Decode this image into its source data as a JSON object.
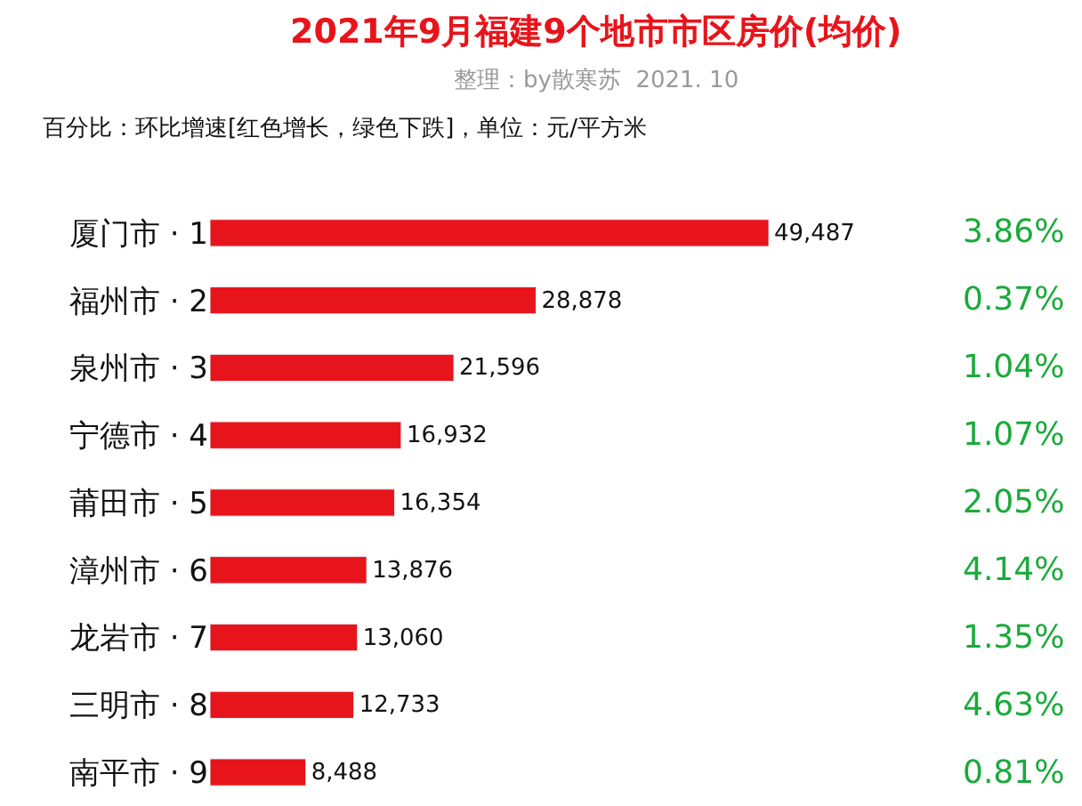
{
  "chart_data": {
    "type": "bar",
    "orientation": "horizontal",
    "title": "2021年9月福建9个地市市区房价(均价)",
    "subtitle": "整理：by散寒苏  2021. 10",
    "categories": [
      "厦门市 · 1",
      "福州市 · 2",
      "泉州市 · 3",
      "宁德市 · 4",
      "莆田市 · 5",
      "漳州市 · 6",
      "龙岩市 · 7",
      "三明市 · 8",
      "南平市 · 9"
    ],
    "values": [
      49487,
      28878,
      21596,
      16932,
      16354,
      13876,
      13060,
      12733,
      8488
    ],
    "color": "#e8141b",
    "value_labels": [
      "49,487",
      "28,878",
      "21,596",
      "16,932",
      "16,354",
      "13,876",
      "13,060",
      "12,733",
      "8,488"
    ],
    "annotations": [
      "百分比：环比增速[红色增长，绿色下跌]，单位：元/平方米",
      "3.86%",
      "0.37%",
      "1.04%",
      "1.07%",
      "2.05%",
      "4.14%",
      "1.35%",
      "4.63%",
      "0.81%"
    ]
  }
}
